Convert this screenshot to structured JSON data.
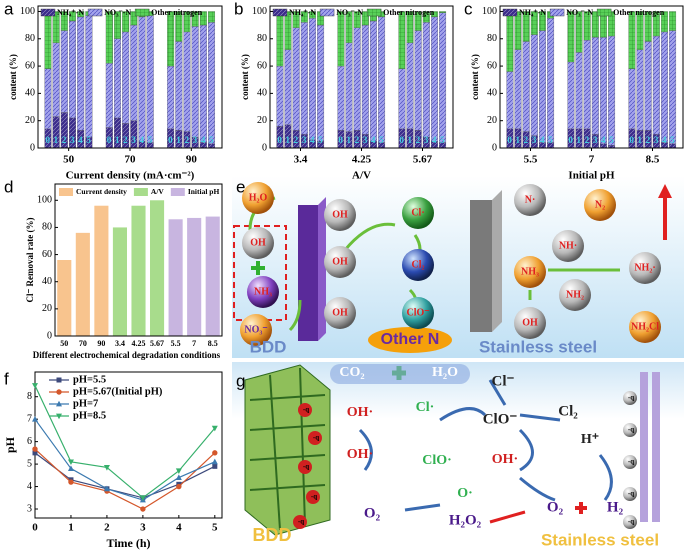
{
  "chart_data": [
    {
      "type": "bar",
      "stacked": true,
      "panel": "a",
      "y_label": "content (%)",
      "x_label": "Current density (mA·cm⁻²)",
      "groups": [
        "50",
        "70",
        "90"
      ],
      "categories": [
        "0",
        "1",
        "2",
        "3",
        "4",
        "5",
        "0",
        "1",
        "2",
        "3",
        "4",
        "5",
        "0",
        "1",
        "2",
        "3",
        "4",
        "5"
      ],
      "ylim": [
        0,
        104
      ],
      "yticks": [
        0,
        20,
        40,
        60,
        80,
        100
      ],
      "legend": "top",
      "series": [
        {
          "name": "NH₄⁺-N",
          "color": "#3b2c8c",
          "values": [
            14,
            23,
            26,
            22,
            13,
            8,
            15,
            22,
            18,
            20,
            5,
            4,
            14,
            13,
            12,
            8,
            4,
            3
          ]
        },
        {
          "name": "NO₃⁻-N",
          "color": "#a3a3ec",
          "values": [
            44,
            54,
            60,
            71,
            83,
            89,
            47,
            58,
            67,
            70,
            91,
            93,
            46,
            65,
            73,
            81,
            86,
            89
          ]
        },
        {
          "name": "Other nitrogen",
          "color": "#58d058",
          "values": [
            42,
            23,
            14,
            7,
            4,
            3,
            38,
            20,
            15,
            10,
            4,
            3,
            40,
            22,
            15,
            11,
            10,
            8
          ]
        }
      ]
    },
    {
      "type": "bar",
      "stacked": true,
      "panel": "b",
      "y_label": "content (%)",
      "x_label": "A/V",
      "groups": [
        "3.4",
        "4.25",
        "5.67"
      ],
      "categories": [
        "0",
        "1",
        "2",
        "3",
        "4",
        "5",
        "0",
        "1",
        "2",
        "3",
        "4",
        "5",
        "0",
        "1",
        "2",
        "3",
        "4",
        "5"
      ],
      "ylim": [
        0,
        104
      ],
      "yticks": [
        0,
        20,
        40,
        60,
        80,
        100
      ],
      "legend": "top",
      "series": [
        {
          "name": "NH₄⁺-N",
          "color": "#3b2c8c",
          "values": [
            16,
            17,
            13,
            10,
            6,
            5,
            13,
            12,
            13,
            10,
            5,
            4,
            14,
            14,
            13,
            8,
            5,
            4
          ]
        },
        {
          "name": "NO₃⁻-N",
          "color": "#a3a3ec",
          "values": [
            44,
            55,
            75,
            82,
            89,
            85,
            47,
            65,
            75,
            80,
            88,
            92,
            44,
            63,
            73,
            84,
            91,
            95
          ]
        },
        {
          "name": "Other nitrogen",
          "color": "#58d058",
          "values": [
            40,
            28,
            12,
            8,
            5,
            10,
            40,
            23,
            12,
            10,
            7,
            4,
            42,
            23,
            14,
            8,
            4,
            1
          ]
        }
      ]
    },
    {
      "type": "bar",
      "stacked": true,
      "panel": "c",
      "y_label": "content (%)",
      "x_label": "Initial pH",
      "groups": [
        "5.5",
        "7",
        "8.5"
      ],
      "categories": [
        "0",
        "1",
        "2",
        "3",
        "4",
        "5",
        "0",
        "1",
        "2",
        "3",
        "4",
        "5",
        "0",
        "1",
        "2",
        "3",
        "4",
        "5"
      ],
      "ylim": [
        0,
        104
      ],
      "yticks": [
        0,
        20,
        40,
        60,
        80,
        100
      ],
      "legend": "top",
      "series": [
        {
          "name": "NH₄⁺-N",
          "color": "#3b2c8c",
          "values": [
            14,
            14,
            12,
            9,
            4,
            4,
            14,
            14,
            14,
            10,
            3,
            2,
            14,
            13,
            13,
            10,
            4,
            3
          ]
        },
        {
          "name": "NO₃⁻-N",
          "color": "#a3a3ec",
          "values": [
            42,
            58,
            66,
            74,
            82,
            91,
            49,
            56,
            65,
            71,
            78,
            80,
            44,
            59,
            65,
            72,
            81,
            83
          ]
        },
        {
          "name": "Other nitrogen",
          "color": "#58d058",
          "values": [
            44,
            28,
            22,
            17,
            14,
            5,
            37,
            30,
            21,
            19,
            19,
            18,
            42,
            28,
            22,
            18,
            15,
            14
          ]
        }
      ]
    },
    {
      "type": "bar",
      "stacked": false,
      "panel": "d",
      "y_label": "Cl⁻ Removal rate (%)",
      "x_label": "Different electrochemical degradation conditions",
      "categories": [
        "50",
        "70",
        "90",
        "3.4",
        "4.25",
        "5.67",
        "5.5",
        "7",
        "8.5"
      ],
      "ylim": [
        0,
        112
      ],
      "yticks": [
        0,
        20,
        40,
        60,
        80,
        100
      ],
      "legend": "top",
      "series": [
        {
          "name": "Current density",
          "color": "#f8c48e",
          "values": [
            56,
            76,
            96,
            null,
            null,
            null,
            null,
            null,
            null
          ]
        },
        {
          "name": "A/V",
          "color": "#a8dc8c",
          "values": [
            null,
            null,
            null,
            80,
            96,
            100,
            null,
            null,
            null
          ]
        },
        {
          "name": "Initial pH",
          "color": "#c8b5e0",
          "values": [
            null,
            null,
            null,
            null,
            null,
            null,
            86,
            87,
            88
          ]
        }
      ]
    },
    {
      "type": "line",
      "panel": "f",
      "y_label": "pH",
      "x_label": "Time (h)",
      "x": [
        0,
        1,
        2,
        3,
        4,
        5
      ],
      "xlim": [
        0,
        5.2
      ],
      "xticks": [
        0,
        1,
        2,
        3,
        4,
        5
      ],
      "ylim": [
        2.6,
        9.1
      ],
      "yticks": [
        3,
        4,
        5,
        6,
        7,
        8
      ],
      "legend": "upper center",
      "series": [
        {
          "name": "pH=5.5",
          "color": "#3d4a7c",
          "marker": "square",
          "values": [
            5.5,
            4.3,
            3.9,
            3.5,
            4.1,
            4.9
          ]
        },
        {
          "name": "pH=5.67(Initial pH)",
          "color": "#d4572b",
          "marker": "circle",
          "values": [
            5.67,
            4.2,
            3.8,
            3.0,
            4.0,
            5.5
          ]
        },
        {
          "name": "pH=7",
          "color": "#3c7ab0",
          "marker": "triangle-up",
          "values": [
            7.0,
            4.8,
            3.9,
            3.4,
            4.4,
            5.1
          ]
        },
        {
          "name": "pH=8.5",
          "color": "#37b06c",
          "marker": "triangle-down",
          "values": [
            8.5,
            5.1,
            4.85,
            3.5,
            4.7,
            6.6
          ]
        }
      ]
    }
  ],
  "diagrams": {
    "e": {
      "panel": "e",
      "spheres": [
        "H₂O",
        "OH",
        "NH₃",
        "NO₃⁻",
        "OH",
        "OH",
        "OH",
        "Cl·",
        "Cl₂",
        "ClO⁻",
        "N·",
        "N₂",
        "NH·",
        "NH₃",
        "NH₂·",
        "NH₂",
        "OH",
        "NH₂Cl"
      ],
      "labels": [
        "BDD",
        "Other N",
        "Stainless steel"
      ]
    },
    "g": {
      "panel": "g",
      "species": [
        "CO₂",
        "H₂O",
        "Cl⁻",
        "Cl₂",
        "OH·",
        "Cl·",
        "ClO⁻",
        "H⁺",
        "OH·",
        "ClO·",
        "OH·",
        "O·",
        "O₂",
        "H₂O₂",
        "O₂",
        "H₂"
      ],
      "charges": [
        "-q",
        "-q",
        "-q",
        "-q",
        "-q",
        "-q",
        "-q",
        "-q",
        "-q",
        "-q"
      ],
      "labels": [
        "BDD",
        "Stainless steel"
      ]
    }
  }
}
